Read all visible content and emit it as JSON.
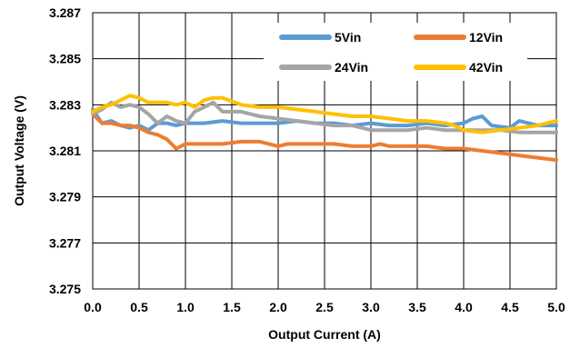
{
  "colors": {
    "5Vin": "#5B9BD5",
    "12Vin": "#ED7D31",
    "24Vin": "#A5A5A5",
    "42Vin": "#FFC000",
    "grid": "#000000",
    "background": "#ffffff"
  },
  "chart_data": {
    "type": "line",
    "title": "",
    "xlabel": "Output Current (A)",
    "ylabel": "Output Voltage (V)",
    "xlim": [
      0,
      5
    ],
    "ylim": [
      3.275,
      3.287
    ],
    "x_ticks": [
      "0.0",
      "0.5",
      "1.0",
      "1.5",
      "2.0",
      "2.5",
      "3.0",
      "3.5",
      "4.0",
      "4.5",
      "5.0"
    ],
    "y_ticks": [
      "3.275",
      "3.277",
      "3.279",
      "3.281",
      "3.283",
      "3.285",
      "3.287"
    ],
    "grid": true,
    "legend_position": "top-right",
    "series": [
      {
        "name": "5Vin",
        "x": [
          0.0,
          0.1,
          0.2,
          0.3,
          0.4,
          0.5,
          0.6,
          0.7,
          0.8,
          0.9,
          1.0,
          1.2,
          1.4,
          1.6,
          1.8,
          2.0,
          2.2,
          2.4,
          2.6,
          2.8,
          3.0,
          3.2,
          3.4,
          3.6,
          3.8,
          4.0,
          4.1,
          4.2,
          4.3,
          4.5,
          4.6,
          4.8,
          5.0
        ],
        "y": [
          3.2828,
          3.2822,
          3.2823,
          3.2821,
          3.282,
          3.2821,
          3.2819,
          3.2822,
          3.2822,
          3.2821,
          3.2822,
          3.2822,
          3.2823,
          3.2822,
          3.2822,
          3.2822,
          3.2823,
          3.2822,
          3.2822,
          3.2821,
          3.2822,
          3.2821,
          3.2821,
          3.2822,
          3.2821,
          3.2822,
          3.2824,
          3.2825,
          3.2821,
          3.282,
          3.2823,
          3.2821,
          3.2821
        ]
      },
      {
        "name": "12Vin",
        "x": [
          0.0,
          0.1,
          0.2,
          0.3,
          0.4,
          0.5,
          0.6,
          0.7,
          0.8,
          0.85,
          0.9,
          1.0,
          1.2,
          1.4,
          1.6,
          1.8,
          2.0,
          2.1,
          2.2,
          2.4,
          2.6,
          2.8,
          3.0,
          3.1,
          3.2,
          3.4,
          3.6,
          3.8,
          4.0,
          4.2,
          4.4,
          4.6,
          4.8,
          5.0
        ],
        "y": [
          3.2826,
          3.2822,
          3.2822,
          3.2821,
          3.2821,
          3.282,
          3.2818,
          3.2817,
          3.2815,
          3.2813,
          3.2811,
          3.2813,
          3.2813,
          3.2813,
          3.2814,
          3.2814,
          3.2812,
          3.2813,
          3.2813,
          3.2813,
          3.2813,
          3.2812,
          3.2812,
          3.2813,
          3.2812,
          3.2812,
          3.2812,
          3.2811,
          3.2811,
          3.281,
          3.2809,
          3.2808,
          3.2807,
          3.2806
        ]
      },
      {
        "name": "24Vin",
        "x": [
          0.0,
          0.1,
          0.2,
          0.3,
          0.4,
          0.5,
          0.6,
          0.7,
          0.8,
          0.9,
          1.0,
          1.1,
          1.2,
          1.3,
          1.4,
          1.6,
          1.8,
          2.0,
          2.2,
          2.4,
          2.6,
          2.8,
          3.0,
          3.2,
          3.4,
          3.6,
          3.8,
          4.0,
          4.2,
          4.4,
          4.6,
          4.8,
          5.0
        ],
        "y": [
          3.2826,
          3.2828,
          3.2831,
          3.2829,
          3.283,
          3.2829,
          3.2826,
          3.2822,
          3.2825,
          3.2823,
          3.2822,
          3.2827,
          3.2829,
          3.2831,
          3.2827,
          3.2827,
          3.2825,
          3.2824,
          3.2823,
          3.2822,
          3.2821,
          3.2821,
          3.2819,
          3.2819,
          3.2819,
          3.282,
          3.2819,
          3.2819,
          3.2819,
          3.2819,
          3.2818,
          3.2818,
          3.2818
        ]
      },
      {
        "name": "42Vin",
        "x": [
          0.0,
          0.1,
          0.2,
          0.3,
          0.4,
          0.5,
          0.6,
          0.7,
          0.8,
          0.9,
          1.0,
          1.1,
          1.2,
          1.3,
          1.4,
          1.6,
          1.8,
          2.0,
          2.2,
          2.4,
          2.6,
          2.8,
          3.0,
          3.2,
          3.4,
          3.6,
          3.8,
          3.9,
          4.0,
          4.2,
          4.4,
          4.6,
          4.8,
          5.0
        ],
        "y": [
          3.2827,
          3.2829,
          3.283,
          3.2832,
          3.2834,
          3.2833,
          3.2831,
          3.2831,
          3.2831,
          3.283,
          3.2831,
          3.2829,
          3.2832,
          3.2833,
          3.2833,
          3.283,
          3.2829,
          3.2829,
          3.2828,
          3.2827,
          3.2826,
          3.2825,
          3.2825,
          3.2824,
          3.2823,
          3.2823,
          3.2822,
          3.2821,
          3.2819,
          3.2818,
          3.2819,
          3.282,
          3.2821,
          3.2823
        ]
      }
    ]
  }
}
